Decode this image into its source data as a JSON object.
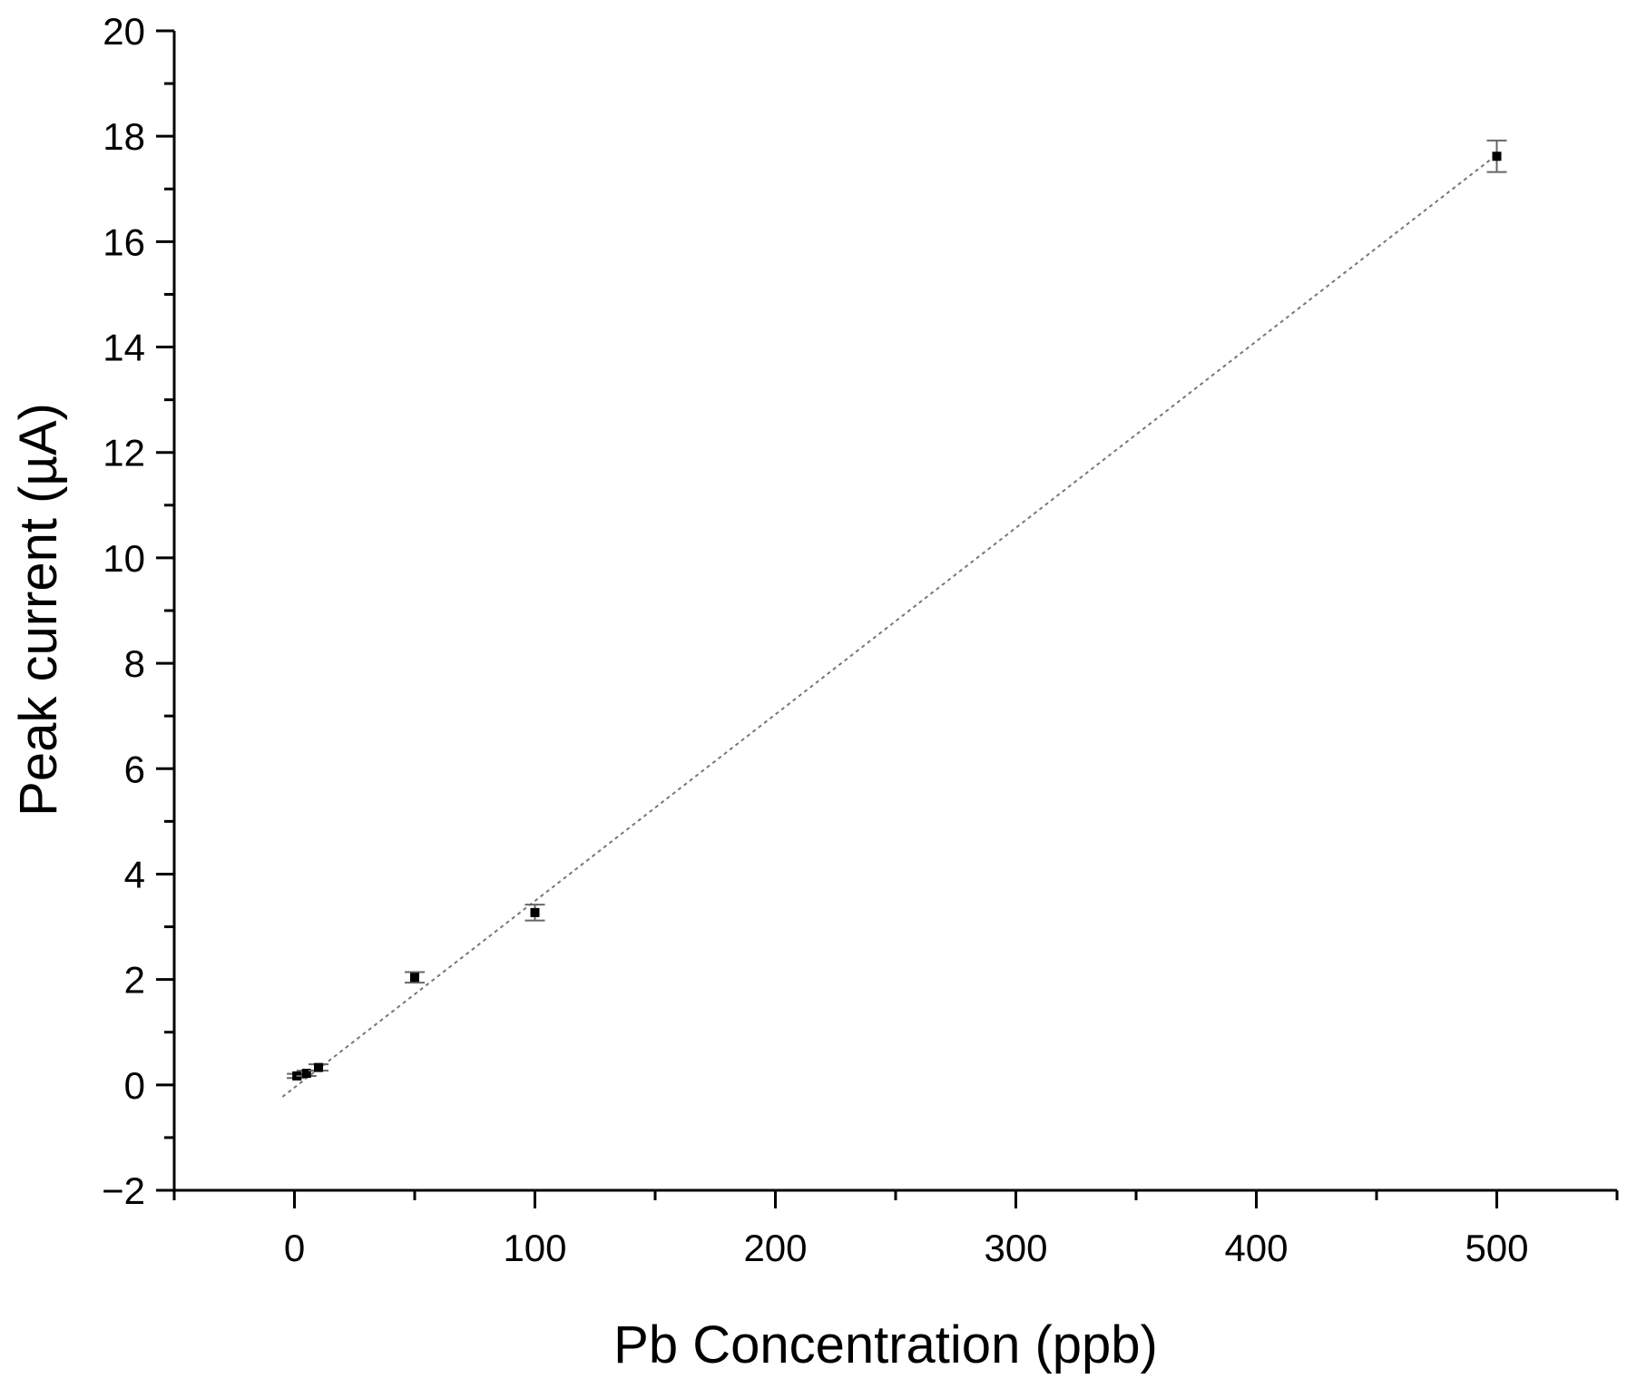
{
  "chart_data": {
    "type": "scatter",
    "title": "",
    "xlabel": "Pb Concentration (ppb)",
    "ylabel": "Peak current (µA)",
    "xlim": [
      -50,
      550
    ],
    "ylim": [
      -2,
      20
    ],
    "x_ticks": [
      0,
      100,
      200,
      300,
      400,
      500
    ],
    "x_tick_labels": [
      "0",
      "100",
      "200",
      "300",
      "400",
      "500"
    ],
    "x_minor_ticks": [
      -50,
      50,
      150,
      250,
      350,
      450,
      550
    ],
    "y_ticks": [
      -2,
      0,
      2,
      4,
      6,
      8,
      10,
      12,
      14,
      16,
      18,
      20
    ],
    "y_tick_labels": [
      "−2",
      "0",
      "2",
      "4",
      "6",
      "8",
      "10",
      "12",
      "14",
      "16",
      "18",
      "20"
    ],
    "y_minor_ticks": [
      -1,
      1,
      3,
      5,
      7,
      9,
      11,
      13,
      15,
      17,
      19
    ],
    "grid": false,
    "series": [
      {
        "name": "Pb",
        "x": [
          1,
          5,
          10,
          50,
          100,
          500
        ],
        "y": [
          0.17,
          0.22,
          0.33,
          2.04,
          3.27,
          17.62
        ],
        "yerr": [
          0.04,
          0.05,
          0.06,
          0.1,
          0.15,
          0.3
        ],
        "color": "#000000"
      }
    ],
    "fit": {
      "type": "linear",
      "slope": 0.0354,
      "intercept": -0.05,
      "x_range": [
        -5,
        500
      ],
      "style": "dotted",
      "color": "#777777"
    }
  }
}
